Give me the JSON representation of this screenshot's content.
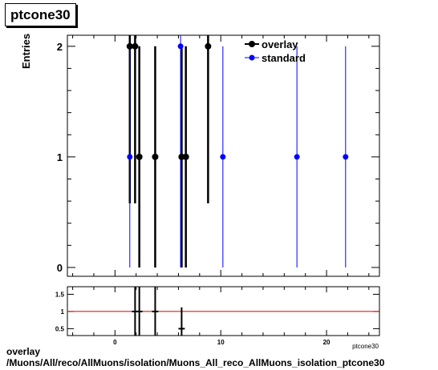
{
  "title": "ptcone30",
  "footer": {
    "line1": "overlay",
    "line2": "/Muons/All/reco/AllMuons/isolation/Muons_All_reco_AllMuons_isolation_ptcone30"
  },
  "chart_data": [
    {
      "type": "scatter",
      "title": "ptcone30",
      "ylabel": "Entries",
      "xlim": [
        -4.5,
        25
      ],
      "ylim": [
        -0.08,
        2.1
      ],
      "yticks": [
        0,
        1,
        2
      ],
      "legend": "top-right",
      "series": [
        {
          "name": "overlay",
          "color": "#000000",
          "points": [
            {
              "x": 1.4,
              "y": 2,
              "err_lo": 1.42,
              "err_hi": 2.1
            },
            {
              "x": 1.9,
              "y": 2,
              "err_lo": 1.42,
              "err_hi": 2.1
            },
            {
              "x": 2.3,
              "y": 1,
              "err_lo": 1.0,
              "err_hi": 1.0
            },
            {
              "x": 3.8,
              "y": 1,
              "err_lo": 1.0,
              "err_hi": 1.0
            },
            {
              "x": 6.3,
              "y": 1,
              "err_lo": 1.0,
              "err_hi": 1.0
            },
            {
              "x": 6.7,
              "y": 1,
              "err_lo": 1.0,
              "err_hi": 1.0
            },
            {
              "x": 8.8,
              "y": 2,
              "err_lo": 1.42,
              "err_hi": 2.1
            }
          ]
        },
        {
          "name": "standard",
          "color": "#0000ff",
          "points": [
            {
              "x": 1.4,
              "y": 1,
              "err_lo": 1.0,
              "err_hi": 1.0
            },
            {
              "x": 6.2,
              "y": 2,
              "err_lo": 2.0,
              "err_hi": 2.1
            },
            {
              "x": 10.2,
              "y": 1,
              "err_lo": 1.0,
              "err_hi": 1.0
            },
            {
              "x": 17.2,
              "y": 1,
              "err_lo": 1.0,
              "err_hi": 1.0
            },
            {
              "x": 21.8,
              "y": 1,
              "err_lo": 1.0,
              "err_hi": 1.0
            }
          ]
        }
      ]
    },
    {
      "type": "scatter",
      "title": "",
      "xlabel": "ptcone30",
      "xlim": [
        -4.5,
        25
      ],
      "ylim": [
        0.3,
        1.72
      ],
      "xticks": [
        0,
        10,
        20
      ],
      "yticks": [
        0.5,
        1,
        1.5
      ],
      "reference_line": {
        "y": 1,
        "color": "#cc0000"
      },
      "series": [
        {
          "name": "",
          "color": "#000000",
          "points": [
            {
              "x": 1.9,
              "y": 1.0,
              "xerr": 0.3,
              "yerr": 1.0
            },
            {
              "x": 2.3,
              "y": 1.0,
              "xerr": 0.3,
              "yerr": 1.0
            },
            {
              "x": 3.8,
              "y": 1.0,
              "xerr": 0.3,
              "yerr": 1.0
            },
            {
              "x": 6.3,
              "y": 0.5,
              "xerr": 0.3,
              "yerr": 0.62
            }
          ]
        }
      ]
    }
  ]
}
